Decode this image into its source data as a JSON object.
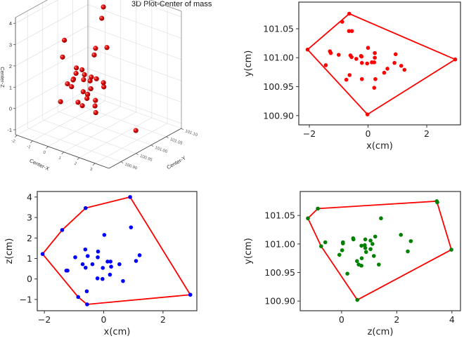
{
  "colors": {
    "hull": "#ff0000",
    "xy_points": "#ff0000",
    "xz_points": "#0000ff",
    "zy_points": "#008000",
    "sphere": "#dd0000"
  },
  "chart_data": [
    {
      "type": "scatter3d",
      "title": "3D Plot-Center of mass",
      "xlabel": "Center-X",
      "ylabel": "Center-Y",
      "zlabel": "Center-Z",
      "xlim": [
        -2.1,
        3.9
      ],
      "ylim": [
        100.86,
        101.1
      ],
      "zlim": [
        -1.23,
        4.27
      ],
      "xticks": [
        -2,
        -1,
        0,
        1,
        2,
        3
      ],
      "xtick_labels": [
        "-2",
        "-1",
        "0",
        "1",
        "2",
        "3"
      ],
      "yticks": [
        100.9,
        100.95,
        101.0,
        101.05,
        101.1
      ],
      "ytick_labels": [
        "100.90",
        "100.95",
        "101.00",
        "101.05",
        "101.10"
      ],
      "zticks": [
        -1,
        0,
        1,
        2,
        3,
        4
      ],
      "ztick_labels": [
        "-1",
        "0",
        "1",
        "2",
        "3",
        "4"
      ],
      "points": [
        [
          -2.06,
          101.014,
          1.22
        ],
        [
          -1.42,
          100.987,
          2.39
        ],
        [
          -0.64,
          101.076,
          3.46
        ],
        [
          0.9,
          100.991,
          4.0
        ],
        [
          2.97,
          100.997,
          -0.77
        ],
        [
          -0.55,
          101.046,
          -1.24
        ],
        [
          -0.88,
          101.062,
          -0.88
        ],
        [
          -0.02,
          100.902,
          0.54
        ],
        [
          0.0,
          101.017,
          2.15
        ],
        [
          0.94,
          101.006,
          2.52
        ],
        [
          -0.65,
          101.046,
          1.44
        ],
        [
          -0.21,
          100.963,
          1.34
        ],
        [
          -1.0,
          101.005,
          1.06
        ],
        [
          -0.56,
          101.001,
          1.12
        ],
        [
          -0.21,
          100.991,
          1.06
        ],
        [
          1.24,
          100.979,
          1.16
        ],
        [
          1.13,
          100.986,
          0.88
        ],
        [
          0.13,
          100.992,
          0.85
        ],
        [
          0.23,
          101.008,
          0.85
        ],
        [
          -0.74,
          100.962,
          0.72
        ],
        [
          -0.4,
          100.998,
          0.72
        ],
        [
          0.53,
          100.974,
          0.73
        ],
        [
          -0.63,
          100.97,
          0.55
        ],
        [
          0.25,
          100.963,
          0.6
        ],
        [
          -1.3,
          101.011,
          0.41
        ],
        [
          -1.27,
          101.008,
          0.4
        ],
        [
          0.21,
          100.948,
          0.21
        ],
        [
          -0.24,
          101.003,
          0.03
        ],
        [
          -0.03,
          100.99,
          0.0
        ],
        [
          0.66,
          100.981,
          -0.1
        ],
        [
          -0.6,
          101.004,
          -0.6
        ],
        [
          -0.22,
          101.002,
          0.05
        ],
        [
          0.21,
          100.992,
          1.05
        ]
      ]
    },
    {
      "type": "scatter",
      "xlabel": "x(cm)",
      "ylabel": "y(cm)",
      "xlim": [
        -2.36,
        3.15
      ],
      "ylim": [
        100.884,
        101.096
      ],
      "xticks": [
        -2,
        0,
        2
      ],
      "xtick_labels": [
        "−2",
        "0",
        "2"
      ],
      "yticks": [
        100.9,
        100.95,
        101.0,
        101.05
      ],
      "ytick_labels": [
        "100.90",
        "100.95",
        "101.00",
        "101.05"
      ],
      "points": [
        [
          -2.06,
          101.014
        ],
        [
          -0.64,
          101.076
        ],
        [
          2.97,
          100.997
        ],
        [
          -0.02,
          100.902
        ],
        [
          -0.88,
          101.062
        ],
        [
          -0.65,
          101.046
        ],
        [
          -0.55,
          101.046
        ],
        [
          -1.3,
          101.011
        ],
        [
          -1.27,
          101.008
        ],
        [
          -1.0,
          101.005
        ],
        [
          -1.44,
          100.987
        ],
        [
          -0.6,
          101.004
        ],
        [
          -0.56,
          101.001
        ],
        [
          -0.4,
          100.998
        ],
        [
          -0.24,
          101.003
        ],
        [
          -0.22,
          101.002
        ],
        [
          0.0,
          101.017
        ],
        [
          0.23,
          101.008
        ],
        [
          0.23,
          101.0
        ],
        [
          -0.21,
          100.991
        ],
        [
          -0.03,
          100.99
        ],
        [
          0.13,
          100.992
        ],
        [
          0.21,
          100.992
        ],
        [
          0.94,
          101.006
        ],
        [
          0.9,
          100.991
        ],
        [
          1.13,
          100.986
        ],
        [
          1.24,
          100.979
        ],
        [
          0.66,
          100.981
        ],
        [
          0.55,
          100.974
        ],
        [
          -0.63,
          100.97
        ],
        [
          -0.74,
          100.962
        ],
        [
          -0.21,
          100.963
        ],
        [
          0.25,
          100.963
        ],
        [
          0.21,
          100.948
        ]
      ],
      "hull": [
        [
          -2.06,
          101.014
        ],
        [
          -0.64,
          101.076
        ],
        [
          2.97,
          100.997
        ],
        [
          -0.02,
          100.902
        ]
      ]
    },
    {
      "type": "scatter",
      "xlabel": "x(cm)",
      "ylabel": "z(cm)",
      "xlim": [
        -2.24,
        3.14
      ],
      "ylim": [
        -1.55,
        4.27
      ],
      "xticks": [
        -2,
        0,
        2
      ],
      "xtick_labels": [
        "−2",
        "0",
        "2"
      ],
      "yticks": [
        -1,
        0,
        1,
        2,
        3,
        4
      ],
      "ytick_labels": [
        "−1",
        "0",
        "1",
        "2",
        "3",
        "4"
      ],
      "points": [
        [
          -2.06,
          1.22
        ],
        [
          -1.4,
          2.39
        ],
        [
          -0.61,
          3.46
        ],
        [
          0.89,
          4.0
        ],
        [
          2.92,
          -0.77
        ],
        [
          -0.56,
          -1.24
        ],
        [
          -0.86,
          -0.88
        ],
        [
          0.02,
          2.15
        ],
        [
          0.92,
          2.52
        ],
        [
          -0.62,
          1.44
        ],
        [
          -0.19,
          1.34
        ],
        [
          -0.96,
          1.06
        ],
        [
          -0.54,
          1.12
        ],
        [
          -0.2,
          1.06
        ],
        [
          1.21,
          1.16
        ],
        [
          1.09,
          0.88
        ],
        [
          0.13,
          0.85
        ],
        [
          0.23,
          0.85
        ],
        [
          -0.71,
          0.72
        ],
        [
          -0.38,
          0.72
        ],
        [
          0.53,
          0.72
        ],
        [
          -0.61,
          0.55
        ],
        [
          -0.03,
          0.54
        ],
        [
          0.25,
          0.6
        ],
        [
          -1.26,
          0.41
        ],
        [
          -1.22,
          0.41
        ],
        [
          0.21,
          0.21
        ],
        [
          -0.21,
          0.03
        ],
        [
          -0.04,
          0.0
        ],
        [
          0.65,
          -0.1
        ],
        [
          -0.57,
          -0.6
        ]
      ],
      "hull": [
        [
          -2.06,
          1.22
        ],
        [
          -1.4,
          2.39
        ],
        [
          -0.61,
          3.46
        ],
        [
          0.89,
          4.0
        ],
        [
          2.92,
          -0.77
        ],
        [
          -0.56,
          -1.24
        ],
        [
          -0.86,
          -0.88
        ]
      ]
    },
    {
      "type": "scatter",
      "xlabel": "z(cm)",
      "ylabel": "y(cm)",
      "xlim": [
        -1.5,
        4.31
      ],
      "ylim": [
        100.883,
        101.092
      ],
      "xticks": [
        0,
        2,
        4
      ],
      "xtick_labels": [
        "0",
        "2",
        "4"
      ],
      "yticks": [
        100.9,
        100.95,
        101.0,
        101.05
      ],
      "ytick_labels": [
        "100.90",
        "100.95",
        "101.00",
        "101.05"
      ],
      "points": [
        [
          -1.22,
          101.045
        ],
        [
          -0.86,
          101.062
        ],
        [
          3.45,
          101.075
        ],
        [
          3.47,
          101.073
        ],
        [
          3.98,
          100.99
        ],
        [
          0.57,
          100.902
        ],
        [
          -0.74,
          100.996
        ],
        [
          1.43,
          101.045
        ],
        [
          -0.59,
          101.003
        ],
        [
          0.05,
          101.003
        ],
        [
          0.05,
          101.001
        ],
        [
          0.42,
          101.01
        ],
        [
          0.43,
          101.008
        ],
        [
          0.86,
          101.008
        ],
        [
          1.22,
          101.013
        ],
        [
          2.15,
          101.016
        ],
        [
          2.51,
          101.005
        ],
        [
          1.05,
          101.006
        ],
        [
          1.12,
          101.0
        ],
        [
          0.72,
          100.997
        ],
        [
          0.84,
          100.998
        ],
        [
          0.86,
          100.993
        ],
        [
          0.89,
          100.986
        ],
        [
          1.05,
          100.991
        ],
        [
          0.02,
          100.989
        ],
        [
          -0.08,
          100.981
        ],
        [
          1.17,
          100.979
        ],
        [
          0.73,
          100.975
        ],
        [
          0.56,
          100.97
        ],
        [
          0.62,
          100.964
        ],
        [
          0.72,
          100.962
        ],
        [
          1.35,
          100.964
        ],
        [
          2.4,
          100.987
        ],
        [
          0.21,
          100.948
        ]
      ],
      "hull": [
        [
          -1.22,
          101.045
        ],
        [
          -0.86,
          101.062
        ],
        [
          3.45,
          101.075
        ],
        [
          3.98,
          100.99
        ],
        [
          0.57,
          100.902
        ],
        [
          -0.74,
          100.996
        ]
      ]
    }
  ]
}
